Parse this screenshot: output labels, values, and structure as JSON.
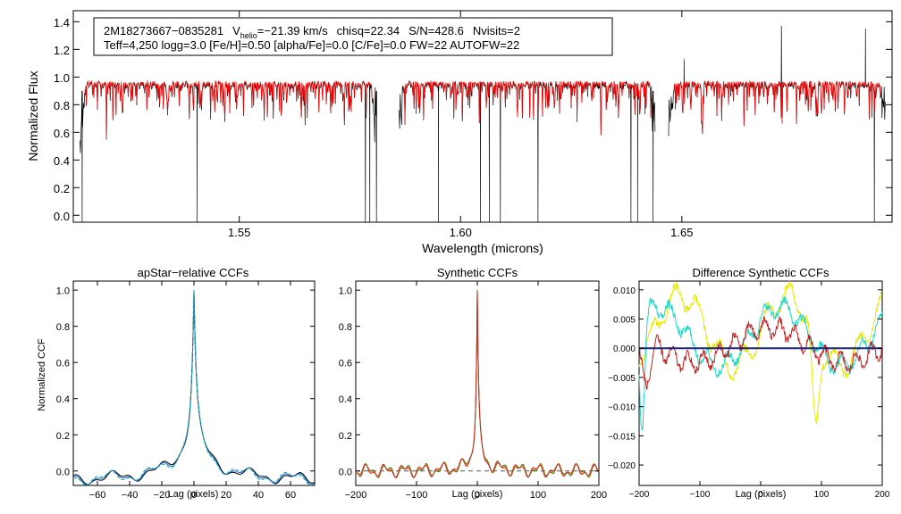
{
  "chart_data": [
    {
      "type": "line",
      "panel": "spectrum",
      "title": "",
      "header_line1": {
        "star": "2M18273667−0835281",
        "v_prefix": "V",
        "v_sub": "helio",
        "v_value": "=−21.39 km/s",
        "chisq": "chisq=22.34",
        "snr": "S/N=428.6",
        "nvisits": "Nvisits=2"
      },
      "header_line2": "Teff=4,250 logg=3.0 [Fe/H]=0.50 [alpha/Fe]=0.0 [C/Fe]=0.0 FW=22 AUTOFW=22",
      "xlabel": "Wavelength (microns)",
      "ylabel": "Normalized Flux",
      "xlim": [
        1.5125,
        1.6975
      ],
      "ylim": [
        -0.05,
        1.48
      ],
      "xticks": [
        {
          "value": 1.55,
          "label": "1.55"
        },
        {
          "value": 1.6,
          "label": "1.60"
        },
        {
          "value": 1.65,
          "label": "1.65"
        }
      ],
      "yticks": [
        {
          "value": 0.0,
          "label": "0.0"
        },
        {
          "value": 0.2,
          "label": "0.2"
        },
        {
          "value": 0.4,
          "label": "0.4"
        },
        {
          "value": 0.6,
          "label": "0.6"
        },
        {
          "value": 0.8,
          "label": "0.8"
        },
        {
          "value": 1.0,
          "label": "1.0"
        },
        {
          "value": 1.2,
          "label": "1.2"
        },
        {
          "value": 1.4,
          "label": "1.4"
        }
      ],
      "chips": [
        [
          1.514,
          1.581
        ],
        [
          1.586,
          1.644
        ],
        [
          1.647,
          1.696
        ]
      ],
      "deep_lines": [
        1.5145,
        1.5405,
        1.5785,
        1.5795,
        1.581,
        1.595,
        1.6045,
        1.6065,
        1.609,
        1.6175,
        1.6385,
        1.64,
        1.6435,
        1.6935
      ],
      "emission_spikes": [
        {
          "x": 1.6725,
          "y": 1.37
        },
        {
          "x": 1.6915,
          "y": 1.35
        },
        {
          "x": 1.6505,
          "y": 1.13
        }
      ],
      "series": [
        {
          "name": "observed",
          "color": "#000000"
        },
        {
          "name": "model",
          "color": "#ff0000"
        }
      ]
    },
    {
      "type": "line",
      "panel": "apstar_ccf",
      "title": "apStar−relative CCFs",
      "xlabel": "Lag (pixels)",
      "ylabel": "Normalized CCF",
      "xlim": [
        -75,
        75
      ],
      "ylim": [
        -0.08,
        1.05
      ],
      "xticks": [
        {
          "value": -60,
          "label": "−60"
        },
        {
          "value": -40,
          "label": "−40"
        },
        {
          "value": -20,
          "label": "−20"
        },
        {
          "value": 0,
          "label": "0"
        },
        {
          "value": 20,
          "label": "20"
        },
        {
          "value": 40,
          "label": "40"
        },
        {
          "value": 60,
          "label": "60"
        }
      ],
      "yticks": [
        {
          "value": 0.0,
          "label": "0.0"
        },
        {
          "value": 0.2,
          "label": "0.2"
        },
        {
          "value": 0.4,
          "label": "0.4"
        },
        {
          "value": 0.6,
          "label": "0.6"
        },
        {
          "value": 0.8,
          "label": "0.8"
        },
        {
          "value": 1.0,
          "label": "1.0"
        }
      ],
      "peak": {
        "x": 0,
        "y": 1.0
      },
      "series": [
        {
          "name": "ccf-1",
          "color": "#000000"
        },
        {
          "name": "ccf-2",
          "color": "#1a5fd0"
        },
        {
          "name": "ccf-3",
          "color": "#20b0a0"
        }
      ]
    },
    {
      "type": "line",
      "panel": "synthetic_ccf",
      "title": "Synthetic CCFs",
      "xlabel": "Lag (pixels)",
      "ylabel": "",
      "xlim": [
        -200,
        200
      ],
      "ylim": [
        -0.08,
        1.05
      ],
      "xticks": [
        {
          "value": -200,
          "label": "−200"
        },
        {
          "value": -100,
          "label": "−100"
        },
        {
          "value": 0,
          "label": "0"
        },
        {
          "value": 100,
          "label": "100"
        },
        {
          "value": 200,
          "label": "200"
        }
      ],
      "yticks": [
        {
          "value": 0.0,
          "label": "0.0"
        },
        {
          "value": 0.2,
          "label": "0.2"
        },
        {
          "value": 0.4,
          "label": "0.4"
        },
        {
          "value": 0.6,
          "label": "0.6"
        },
        {
          "value": 0.8,
          "label": "0.8"
        },
        {
          "value": 1.0,
          "label": "1.0"
        }
      ],
      "peak": {
        "x": 0,
        "y": 1.0
      },
      "baseline": 0.0,
      "series": [
        {
          "name": "ccf-a",
          "color": "#2e7d32"
        },
        {
          "name": "ccf-b",
          "color": "#e08a00"
        },
        {
          "name": "ccf-c",
          "color": "#c62828"
        }
      ]
    },
    {
      "type": "line",
      "panel": "difference_ccf",
      "title": "Difference Synthetic CCFs",
      "xlabel": "Lag (pixels)",
      "ylabel": "",
      "xlim": [
        -200,
        200
      ],
      "ylim": [
        -0.0235,
        0.0115
      ],
      "xticks": [
        {
          "value": -200,
          "label": "−200"
        },
        {
          "value": -100,
          "label": "−100"
        },
        {
          "value": 0,
          "label": "0"
        },
        {
          "value": 100,
          "label": "100"
        },
        {
          "value": 200,
          "label": "200"
        }
      ],
      "yticks": [
        {
          "value": 0.01,
          "label": "0.010"
        },
        {
          "value": 0.005,
          "label": "0.005"
        },
        {
          "value": 0.0,
          "label": "0.000"
        },
        {
          "value": -0.005,
          "label": "−0.005"
        },
        {
          "value": -0.01,
          "label": "−0.010"
        },
        {
          "value": -0.015,
          "label": "−0.015"
        },
        {
          "value": -0.02,
          "label": "−0.020"
        }
      ],
      "baseline": 0.0,
      "series": [
        {
          "name": "diff-yellow",
          "color": "#e8e800"
        },
        {
          "name": "diff-cyan",
          "color": "#20d8c8"
        },
        {
          "name": "diff-red",
          "color": "#c81e1e"
        },
        {
          "name": "zero-line",
          "color": "#1a237e"
        }
      ]
    }
  ]
}
